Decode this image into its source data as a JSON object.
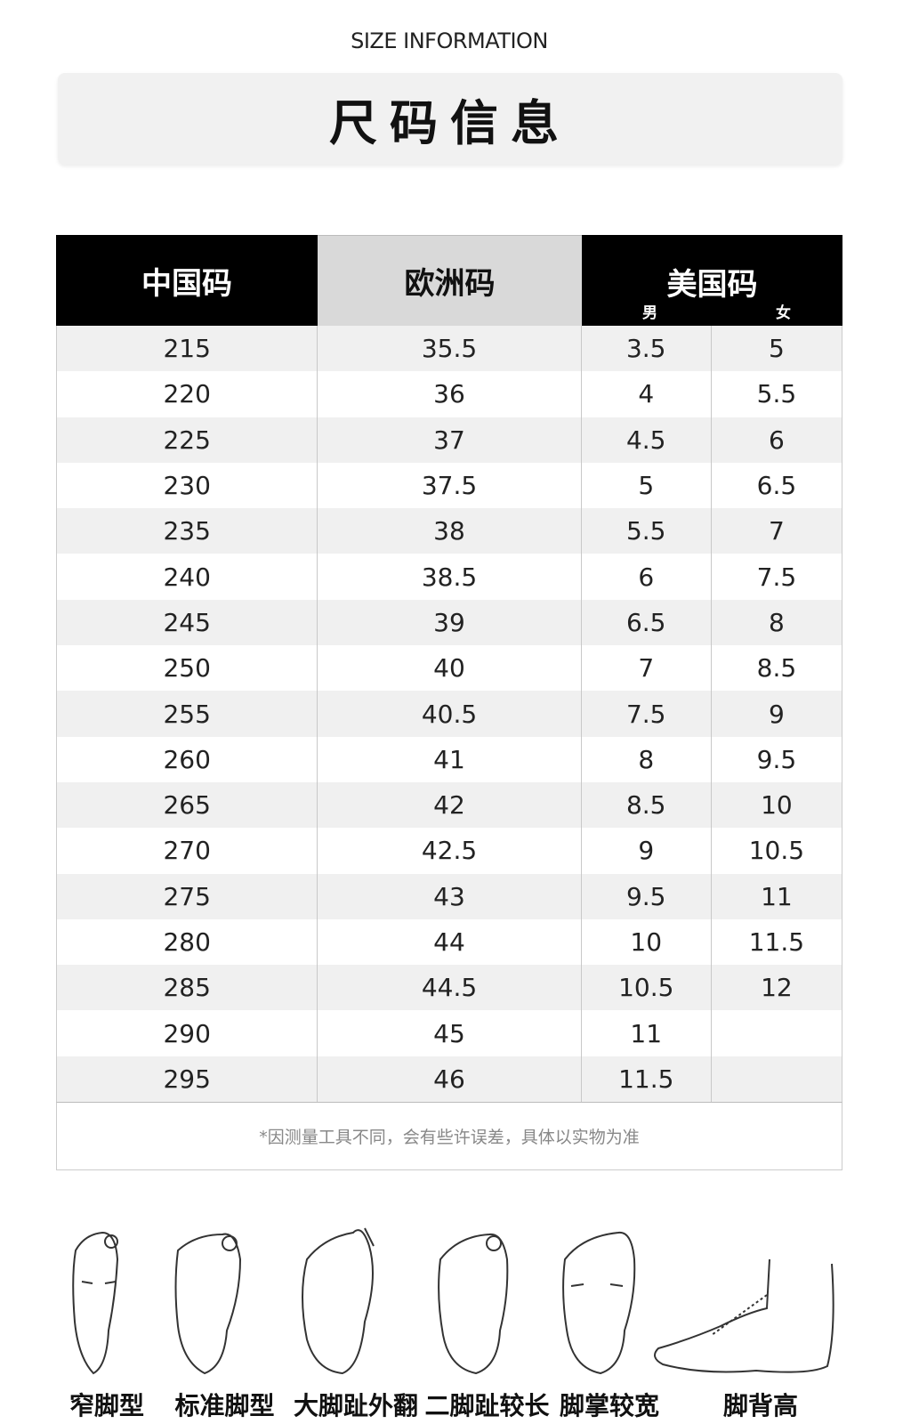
{
  "header": {
    "subtitle": "SIZE INFORMATION",
    "title": "尺码信息"
  },
  "table": {
    "columns": {
      "cn": "中国码",
      "eu": "欧洲码",
      "us": "美国码",
      "us_men": "男",
      "us_women": "女"
    },
    "rows": [
      [
        "215",
        "35.5",
        "3.5",
        "5"
      ],
      [
        "220",
        "36",
        "4",
        "5.5"
      ],
      [
        "225",
        "37",
        "4.5",
        "6"
      ],
      [
        "230",
        "37.5",
        "5",
        "6.5"
      ],
      [
        "235",
        "38",
        "5.5",
        "7"
      ],
      [
        "240",
        "38.5",
        "6",
        "7.5"
      ],
      [
        "245",
        "39",
        "6.5",
        "8"
      ],
      [
        "250",
        "40",
        "7",
        "8.5"
      ],
      [
        "255",
        "40.5",
        "7.5",
        "9"
      ],
      [
        "260",
        "41",
        "8",
        "9.5"
      ],
      [
        "265",
        "42",
        "8.5",
        "10"
      ],
      [
        "270",
        "42.5",
        "9",
        "10.5"
      ],
      [
        "275",
        "43",
        "9.5",
        "11"
      ],
      [
        "280",
        "44",
        "10",
        "11.5"
      ],
      [
        "285",
        "44.5",
        "10.5",
        "12"
      ],
      [
        "290",
        "45",
        "11",
        ""
      ],
      [
        "295",
        "46",
        "11.5",
        ""
      ]
    ],
    "note": "*因测量工具不同，会有些许误差，具体以实物为准"
  },
  "foot_types": [
    "窄脚型",
    "标准脚型",
    "大脚趾外翻",
    "二脚趾较长",
    "脚掌较宽",
    "脚背高"
  ]
}
